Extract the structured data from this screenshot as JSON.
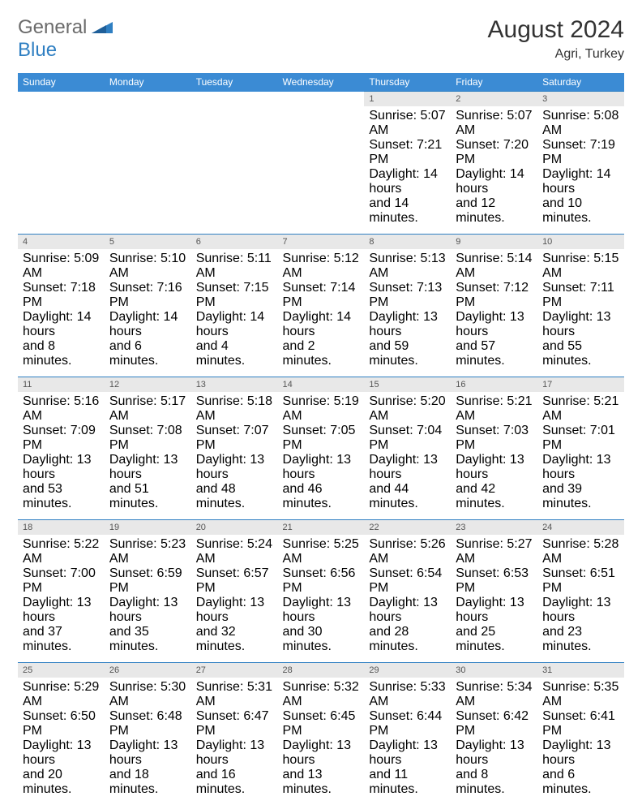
{
  "logo": {
    "general": "General",
    "blue": "Blue"
  },
  "title": "August 2024",
  "location": "Agri, Turkey",
  "daynames": [
    "Sunday",
    "Monday",
    "Tuesday",
    "Wednesday",
    "Thursday",
    "Friday",
    "Saturday"
  ],
  "colors": {
    "header_bg": "#3b8bd4",
    "header_text": "#ffffff",
    "daynum_bg": "#e8e8e8",
    "border_top": "#2f7fc2",
    "text": "#333333"
  },
  "weeks": [
    [
      null,
      null,
      null,
      null,
      {
        "n": "1",
        "rise": "Sunrise: 5:07 AM",
        "set": "Sunset: 7:21 PM",
        "dl1": "Daylight: 14 hours",
        "dl2": "and 14 minutes."
      },
      {
        "n": "2",
        "rise": "Sunrise: 5:07 AM",
        "set": "Sunset: 7:20 PM",
        "dl1": "Daylight: 14 hours",
        "dl2": "and 12 minutes."
      },
      {
        "n": "3",
        "rise": "Sunrise: 5:08 AM",
        "set": "Sunset: 7:19 PM",
        "dl1": "Daylight: 14 hours",
        "dl2": "and 10 minutes."
      }
    ],
    [
      {
        "n": "4",
        "rise": "Sunrise: 5:09 AM",
        "set": "Sunset: 7:18 PM",
        "dl1": "Daylight: 14 hours",
        "dl2": "and 8 minutes."
      },
      {
        "n": "5",
        "rise": "Sunrise: 5:10 AM",
        "set": "Sunset: 7:16 PM",
        "dl1": "Daylight: 14 hours",
        "dl2": "and 6 minutes."
      },
      {
        "n": "6",
        "rise": "Sunrise: 5:11 AM",
        "set": "Sunset: 7:15 PM",
        "dl1": "Daylight: 14 hours",
        "dl2": "and 4 minutes."
      },
      {
        "n": "7",
        "rise": "Sunrise: 5:12 AM",
        "set": "Sunset: 7:14 PM",
        "dl1": "Daylight: 14 hours",
        "dl2": "and 2 minutes."
      },
      {
        "n": "8",
        "rise": "Sunrise: 5:13 AM",
        "set": "Sunset: 7:13 PM",
        "dl1": "Daylight: 13 hours",
        "dl2": "and 59 minutes."
      },
      {
        "n": "9",
        "rise": "Sunrise: 5:14 AM",
        "set": "Sunset: 7:12 PM",
        "dl1": "Daylight: 13 hours",
        "dl2": "and 57 minutes."
      },
      {
        "n": "10",
        "rise": "Sunrise: 5:15 AM",
        "set": "Sunset: 7:11 PM",
        "dl1": "Daylight: 13 hours",
        "dl2": "and 55 minutes."
      }
    ],
    [
      {
        "n": "11",
        "rise": "Sunrise: 5:16 AM",
        "set": "Sunset: 7:09 PM",
        "dl1": "Daylight: 13 hours",
        "dl2": "and 53 minutes."
      },
      {
        "n": "12",
        "rise": "Sunrise: 5:17 AM",
        "set": "Sunset: 7:08 PM",
        "dl1": "Daylight: 13 hours",
        "dl2": "and 51 minutes."
      },
      {
        "n": "13",
        "rise": "Sunrise: 5:18 AM",
        "set": "Sunset: 7:07 PM",
        "dl1": "Daylight: 13 hours",
        "dl2": "and 48 minutes."
      },
      {
        "n": "14",
        "rise": "Sunrise: 5:19 AM",
        "set": "Sunset: 7:05 PM",
        "dl1": "Daylight: 13 hours",
        "dl2": "and 46 minutes."
      },
      {
        "n": "15",
        "rise": "Sunrise: 5:20 AM",
        "set": "Sunset: 7:04 PM",
        "dl1": "Daylight: 13 hours",
        "dl2": "and 44 minutes."
      },
      {
        "n": "16",
        "rise": "Sunrise: 5:21 AM",
        "set": "Sunset: 7:03 PM",
        "dl1": "Daylight: 13 hours",
        "dl2": "and 42 minutes."
      },
      {
        "n": "17",
        "rise": "Sunrise: 5:21 AM",
        "set": "Sunset: 7:01 PM",
        "dl1": "Daylight: 13 hours",
        "dl2": "and 39 minutes."
      }
    ],
    [
      {
        "n": "18",
        "rise": "Sunrise: 5:22 AM",
        "set": "Sunset: 7:00 PM",
        "dl1": "Daylight: 13 hours",
        "dl2": "and 37 minutes."
      },
      {
        "n": "19",
        "rise": "Sunrise: 5:23 AM",
        "set": "Sunset: 6:59 PM",
        "dl1": "Daylight: 13 hours",
        "dl2": "and 35 minutes."
      },
      {
        "n": "20",
        "rise": "Sunrise: 5:24 AM",
        "set": "Sunset: 6:57 PM",
        "dl1": "Daylight: 13 hours",
        "dl2": "and 32 minutes."
      },
      {
        "n": "21",
        "rise": "Sunrise: 5:25 AM",
        "set": "Sunset: 6:56 PM",
        "dl1": "Daylight: 13 hours",
        "dl2": "and 30 minutes."
      },
      {
        "n": "22",
        "rise": "Sunrise: 5:26 AM",
        "set": "Sunset: 6:54 PM",
        "dl1": "Daylight: 13 hours",
        "dl2": "and 28 minutes."
      },
      {
        "n": "23",
        "rise": "Sunrise: 5:27 AM",
        "set": "Sunset: 6:53 PM",
        "dl1": "Daylight: 13 hours",
        "dl2": "and 25 minutes."
      },
      {
        "n": "24",
        "rise": "Sunrise: 5:28 AM",
        "set": "Sunset: 6:51 PM",
        "dl1": "Daylight: 13 hours",
        "dl2": "and 23 minutes."
      }
    ],
    [
      {
        "n": "25",
        "rise": "Sunrise: 5:29 AM",
        "set": "Sunset: 6:50 PM",
        "dl1": "Daylight: 13 hours",
        "dl2": "and 20 minutes."
      },
      {
        "n": "26",
        "rise": "Sunrise: 5:30 AM",
        "set": "Sunset: 6:48 PM",
        "dl1": "Daylight: 13 hours",
        "dl2": "and 18 minutes."
      },
      {
        "n": "27",
        "rise": "Sunrise: 5:31 AM",
        "set": "Sunset: 6:47 PM",
        "dl1": "Daylight: 13 hours",
        "dl2": "and 16 minutes."
      },
      {
        "n": "28",
        "rise": "Sunrise: 5:32 AM",
        "set": "Sunset: 6:45 PM",
        "dl1": "Daylight: 13 hours",
        "dl2": "and 13 minutes."
      },
      {
        "n": "29",
        "rise": "Sunrise: 5:33 AM",
        "set": "Sunset: 6:44 PM",
        "dl1": "Daylight: 13 hours",
        "dl2": "and 11 minutes."
      },
      {
        "n": "30",
        "rise": "Sunrise: 5:34 AM",
        "set": "Sunset: 6:42 PM",
        "dl1": "Daylight: 13 hours",
        "dl2": "and 8 minutes."
      },
      {
        "n": "31",
        "rise": "Sunrise: 5:35 AM",
        "set": "Sunset: 6:41 PM",
        "dl1": "Daylight: 13 hours",
        "dl2": "and 6 minutes."
      }
    ]
  ]
}
